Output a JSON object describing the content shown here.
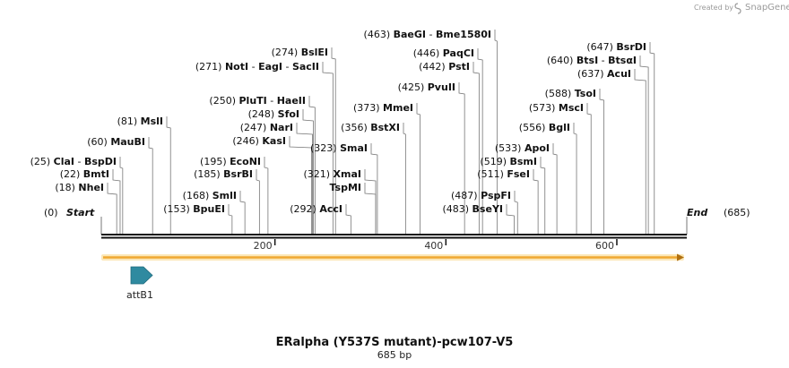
{
  "sequence": {
    "title": "ERalpha (Y537S mutant)-pcw107-V5",
    "length_label": "685 bp",
    "length": 685,
    "start_label": "Start",
    "end_label": "End",
    "start_pos_label": "(0)",
    "end_pos_label": "(685)"
  },
  "credit": {
    "created_by": "Created by",
    "brand": "SnapGene"
  },
  "ruler": {
    "ticks": [
      200,
      400,
      600
    ]
  },
  "sites": [
    {
      "pos": 18,
      "label": "(18)",
      "names": [
        "NheI"
      ]
    },
    {
      "pos": 22,
      "label": "(22)",
      "names": [
        "BmtI"
      ]
    },
    {
      "pos": 25,
      "label": "(25)",
      "names": [
        "ClaI",
        "BspDI"
      ]
    },
    {
      "pos": 60,
      "label": "(60)",
      "names": [
        "MauBI"
      ]
    },
    {
      "pos": 81,
      "label": "(81)",
      "names": [
        "MslI"
      ]
    },
    {
      "pos": 153,
      "label": "(153)",
      "names": [
        "BpuEI"
      ]
    },
    {
      "pos": 168,
      "label": "(168)",
      "names": [
        "SmlI"
      ]
    },
    {
      "pos": 185,
      "label": "(185)",
      "names": [
        "BsrBI"
      ]
    },
    {
      "pos": 195,
      "label": "(195)",
      "names": [
        "EcoNI"
      ]
    },
    {
      "pos": 246,
      "label": "(246)",
      "names": [
        "KasI"
      ]
    },
    {
      "pos": 247,
      "label": "(247)",
      "names": [
        "NarI"
      ]
    },
    {
      "pos": 248,
      "label": "(248)",
      "names": [
        "SfoI"
      ]
    },
    {
      "pos": 250,
      "label": "(250)",
      "names": [
        "PluTI",
        "HaeII"
      ]
    },
    {
      "pos": 271,
      "label": "(271)",
      "names": [
        "NotI",
        "EagI",
        "SacII"
      ]
    },
    {
      "pos": 274,
      "label": "(274)",
      "names": [
        "BslEI"
      ]
    },
    {
      "pos": 292,
      "label": "(292)",
      "names": [
        "AccI"
      ]
    },
    {
      "pos": 321,
      "label": "(321)",
      "names": [
        "XmaI"
      ]
    },
    {
      "pos": 321,
      "label": "",
      "names": [
        "TspMI"
      ]
    },
    {
      "pos": 323,
      "label": "(323)",
      "names": [
        "SmaI"
      ]
    },
    {
      "pos": 356,
      "label": "(356)",
      "names": [
        "BstXI"
      ]
    },
    {
      "pos": 373,
      "label": "(373)",
      "names": [
        "MmeI"
      ]
    },
    {
      "pos": 425,
      "label": "(425)",
      "names": [
        "PvuII"
      ]
    },
    {
      "pos": 442,
      "label": "(442)",
      "names": [
        "PstI"
      ]
    },
    {
      "pos": 446,
      "label": "(446)",
      "names": [
        "PaqCI"
      ]
    },
    {
      "pos": 463,
      "label": "(463)",
      "names": [
        "BaeGI",
        "Bme1580I"
      ]
    },
    {
      "pos": 483,
      "label": "(483)",
      "names": [
        "BseYI"
      ]
    },
    {
      "pos": 487,
      "label": "(487)",
      "names": [
        "PspFI"
      ]
    },
    {
      "pos": 511,
      "label": "(511)",
      "names": [
        "FseI"
      ]
    },
    {
      "pos": 519,
      "label": "(519)",
      "names": [
        "BsmI"
      ]
    },
    {
      "pos": 533,
      "label": "(533)",
      "names": [
        "ApoI"
      ]
    },
    {
      "pos": 556,
      "label": "(556)",
      "names": [
        "BglI"
      ]
    },
    {
      "pos": 573,
      "label": "(573)",
      "names": [
        "MscI"
      ]
    },
    {
      "pos": 588,
      "label": "(588)",
      "names": [
        "TsoI"
      ]
    },
    {
      "pos": 637,
      "label": "(637)",
      "names": [
        "AcuI"
      ]
    },
    {
      "pos": 640,
      "label": "(640)",
      "names": [
        "BtsI",
        "BtsαI"
      ]
    },
    {
      "pos": 647,
      "label": "(647)",
      "names": [
        "BsrDI"
      ]
    }
  ],
  "features": [
    {
      "name": "attB1",
      "start": 35,
      "end": 60,
      "color": "#2f8aa0",
      "direction": "forward"
    }
  ],
  "orf": {
    "start": 0,
    "end": 685,
    "color": "#f0a830",
    "direction": "forward"
  },
  "colors": {
    "backbone": "#111111",
    "site_line": "#777777",
    "feature": "#2f8aa0",
    "orf_fill": "#f0a830",
    "orf_glow": "#fbe7b7"
  }
}
